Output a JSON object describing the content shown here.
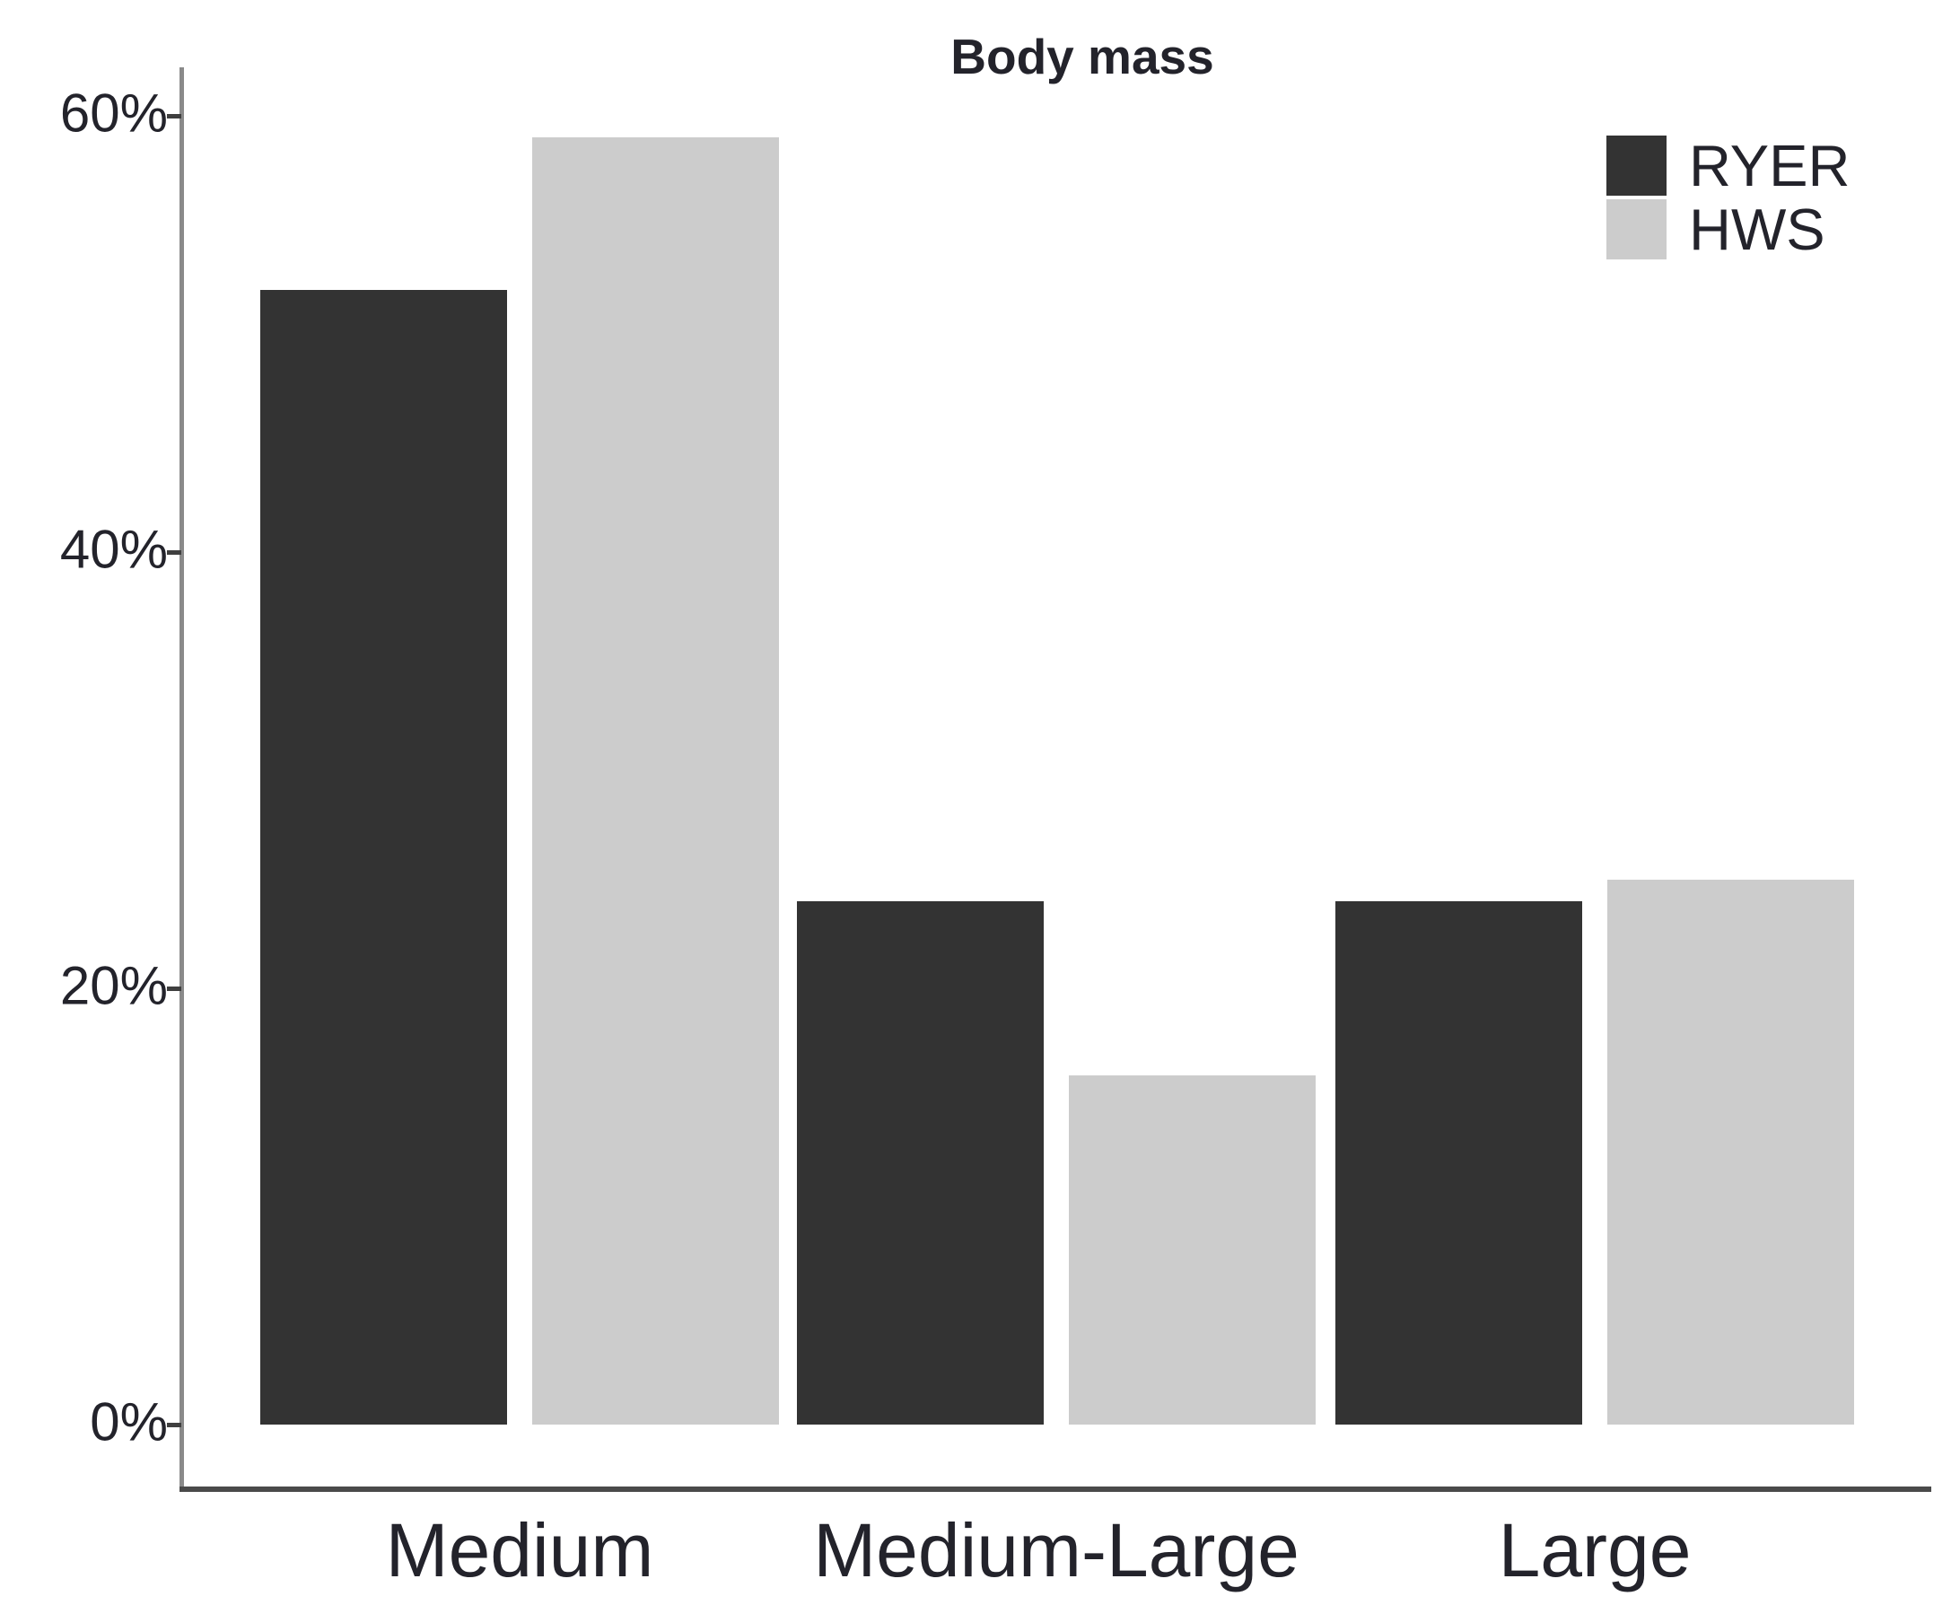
{
  "chart_data": {
    "type": "bar",
    "title": "Body mass",
    "categories": [
      "Medium",
      "Medium-Large",
      "Large"
    ],
    "series": [
      {
        "name": "RYER",
        "color": "#333333",
        "values": [
          52,
          24,
          24
        ]
      },
      {
        "name": "HWS",
        "color": "#cccccc",
        "values": [
          59,
          16,
          25
        ]
      }
    ],
    "unit": "%",
    "xlabel": "",
    "ylabel": "",
    "y_ticks": [
      {
        "value": 0,
        "label": "0%"
      },
      {
        "value": 20,
        "label": "20%"
      },
      {
        "value": 40,
        "label": "40%"
      },
      {
        "value": 60,
        "label": "60%"
      }
    ],
    "ylim": [
      0,
      62
    ],
    "grid": false,
    "legend_position": "top-right",
    "bar_grouping": "grouped"
  },
  "colors": {
    "background": "#ffffff",
    "text": "#23232b",
    "y_axis_line": "#8a8a8a",
    "x_axis_line": "#4a4a4a",
    "tick_mark": "#3f3f3f"
  }
}
